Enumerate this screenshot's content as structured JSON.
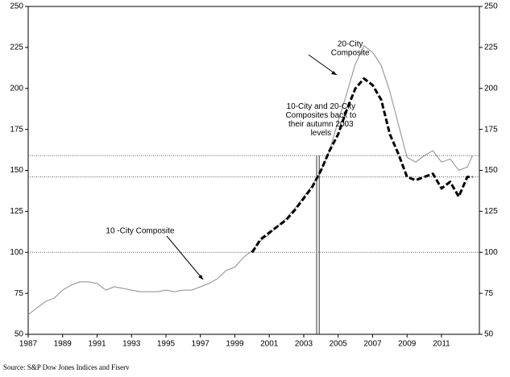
{
  "chart_data": {
    "type": "line",
    "source": "Source: S&P Dow Jones Indices and Fiserv",
    "x": [
      1987,
      1987.5,
      1988,
      1988.5,
      1989,
      1989.5,
      1990,
      1990.5,
      1991,
      1991.5,
      1992,
      1992.5,
      1993,
      1993.5,
      1994,
      1994.5,
      1995,
      1995.5,
      1996,
      1996.5,
      1997,
      1997.5,
      1998,
      1998.5,
      1999,
      1999.5,
      2000,
      2000.5,
      2001,
      2001.5,
      2002,
      2002.5,
      2003,
      2003.5,
      2004,
      2004.5,
      2005,
      2005.5,
      2006,
      2006.5,
      2007,
      2007.5,
      2008,
      2008.5,
      2009,
      2009.5,
      2010,
      2010.5,
      2011,
      2011.5,
      2012,
      2012.5,
      2012.8
    ],
    "series": [
      {
        "color": "#8c8c8c",
        "width": 1,
        "dash": false,
        "values": [
          62,
          66,
          70,
          72,
          77,
          80,
          82,
          82,
          81,
          77,
          79,
          78,
          77,
          76,
          76,
          76,
          77,
          76,
          77,
          77,
          79,
          81,
          84,
          89,
          91,
          97,
          101,
          107,
          111,
          116,
          121,
          127,
          134,
          141,
          150,
          162,
          180,
          197,
          215,
          226,
          222,
          214,
          198,
          178,
          158,
          155,
          159,
          162,
          155,
          157,
          150,
          152,
          159
        ]
      },
      {
        "color": "#000000",
        "width": 3,
        "dash": true,
        "values": [
          null,
          null,
          null,
          null,
          null,
          null,
          null,
          null,
          null,
          null,
          null,
          null,
          null,
          null,
          null,
          null,
          null,
          null,
          null,
          null,
          null,
          null,
          null,
          null,
          null,
          null,
          100,
          108,
          112,
          116,
          120,
          126,
          133,
          140,
          150,
          162,
          172,
          187,
          200,
          206,
          202,
          193,
          172,
          160,
          146,
          144,
          146,
          148,
          139,
          143,
          134,
          146,
          146
        ]
      }
    ],
    "xlim": [
      1987,
      2013.2
    ],
    "xticks": [
      1987,
      1989,
      1991,
      1993,
      1995,
      1997,
      1999,
      2001,
      2003,
      2005,
      2007,
      2009,
      2011
    ],
    "ylim": [
      50,
      250
    ],
    "yticks": [
      50,
      75,
      100,
      125,
      150,
      175,
      200,
      225,
      250
    ],
    "reference_lines": [
      100,
      159,
      146
    ],
    "vertical_lines": [
      2003.75,
      2003.9
    ],
    "annotations": [
      {
        "lines": [
          "20-City",
          "Composite"
        ],
        "x": 2005.7,
        "y": 227
      },
      {
        "lines": [
          "10-City and 20-City",
          "Composites back to",
          "their autumn 2003",
          "levels"
        ],
        "x": 2004,
        "y": 189
      },
      {
        "lines": [
          "10 -City Composite"
        ],
        "x": 1993.5,
        "y": 113
      }
    ]
  }
}
